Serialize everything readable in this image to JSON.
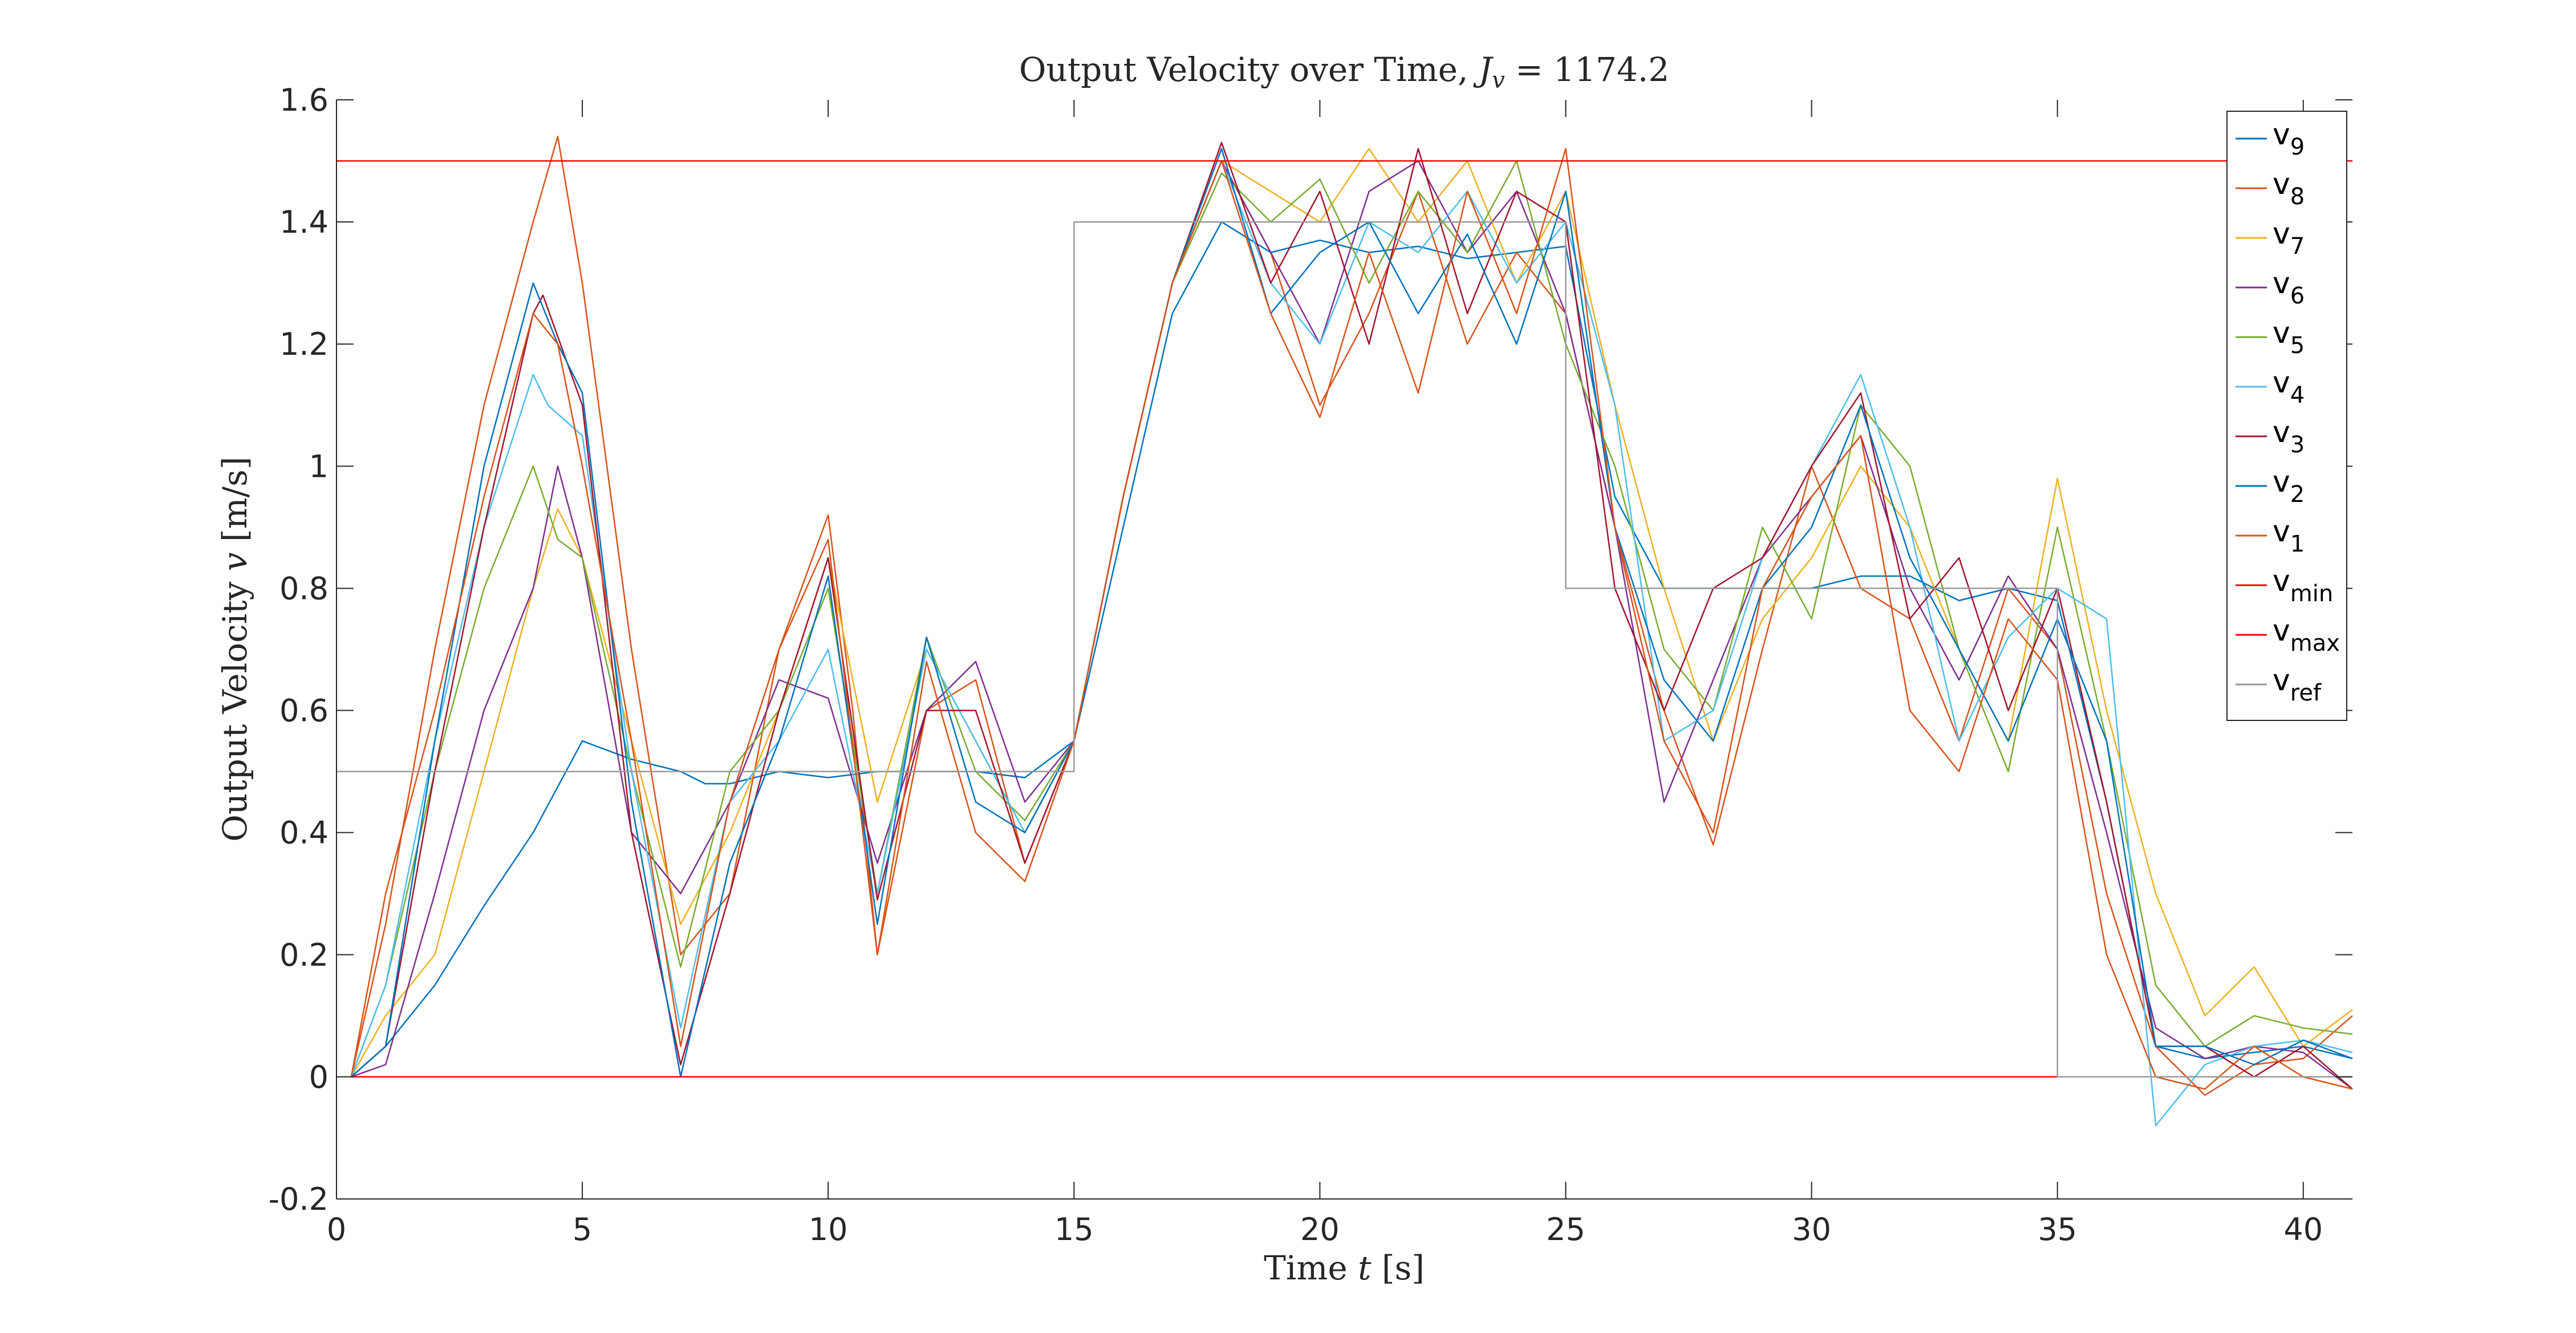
{
  "chart_data": {
    "type": "line",
    "title_prefix": "Output Velocity over Time, ",
    "title_var": "J",
    "title_sub": "v",
    "title_suffix": " = 1174.2",
    "xlabel_prefix": "Time ",
    "xlabel_var": "t",
    "xlabel_unit": " [s]",
    "ylabel_prefix": "Output Velocity ",
    "ylabel_var": "v",
    "ylabel_unit": " [m/s]",
    "xlim": [
      0,
      41
    ],
    "ylim": [
      -0.2,
      1.6
    ],
    "xticks": [
      0,
      5,
      10,
      15,
      20,
      25,
      30,
      35,
      40
    ],
    "xtick_labels": [
      "0",
      "5",
      "10",
      "15",
      "20",
      "25",
      "30",
      "35",
      "40"
    ],
    "yticks": [
      -0.2,
      0,
      0.2,
      0.4,
      0.6,
      0.8,
      1,
      1.2,
      1.4,
      1.6
    ],
    "ytick_labels": [
      "-0.2",
      "0",
      "0.2",
      "0.4",
      "0.6",
      "0.8",
      "1",
      "1.2",
      "1.4",
      "1.6"
    ],
    "grid": false,
    "legend_position": "top-right",
    "series": [
      {
        "name": "v",
        "sub": "9",
        "color": "#0072BD",
        "x": [
          0.3,
          1,
          2,
          3,
          4,
          5,
          6,
          7,
          7.5,
          8,
          9,
          10,
          11,
          12,
          13,
          14,
          15,
          16,
          17,
          18,
          19,
          20,
          21,
          22,
          23,
          24,
          25,
          26,
          27,
          28,
          29,
          30,
          31,
          32,
          33,
          34,
          35,
          36,
          37,
          38,
          39,
          40,
          41
        ],
        "y": [
          0,
          0.05,
          0.15,
          0.28,
          0.4,
          0.55,
          0.52,
          0.5,
          0.48,
          0.48,
          0.5,
          0.49,
          0.5,
          0.5,
          0.5,
          0.49,
          0.55,
          0.9,
          1.25,
          1.4,
          1.35,
          1.37,
          1.35,
          1.36,
          1.34,
          1.35,
          1.36,
          0.95,
          0.8,
          0.8,
          0.8,
          0.8,
          0.82,
          0.82,
          0.78,
          0.8,
          0.78,
          0.45,
          0.05,
          0.03,
          0.04,
          0.05,
          0.03
        ]
      },
      {
        "name": "v",
        "sub": "8",
        "color": "#D95319",
        "x": [
          0.3,
          1,
          2,
          3,
          4,
          4.5,
          5,
          6,
          7,
          8,
          9,
          10,
          10.5,
          11,
          12,
          13,
          14,
          15,
          16,
          17,
          18,
          19,
          20,
          21,
          22,
          23,
          24,
          25,
          26,
          27,
          28,
          29,
          30,
          31,
          32,
          33,
          34,
          35,
          36,
          37,
          38,
          39,
          40,
          41
        ],
        "y": [
          0,
          0.25,
          0.7,
          1.1,
          1.4,
          1.54,
          1.3,
          0.7,
          0.2,
          0.3,
          0.7,
          0.92,
          0.6,
          0.2,
          0.6,
          0.65,
          0.35,
          0.55,
          0.95,
          1.3,
          1.5,
          1.35,
          1.1,
          1.25,
          1.45,
          1.2,
          1.35,
          1.25,
          0.9,
          0.6,
          0.38,
          0.7,
          1.0,
          0.8,
          0.75,
          0.55,
          0.8,
          0.7,
          0.3,
          0.05,
          -0.03,
          0.02,
          0.03,
          0.1
        ]
      },
      {
        "name": "v",
        "sub": "7",
        "color": "#EDB120",
        "x": [
          0.3,
          1,
          2,
          3,
          4,
          4.5,
          5,
          6,
          7,
          8,
          9,
          10,
          11,
          12,
          13,
          14,
          15,
          16,
          17,
          18,
          19,
          20,
          21,
          22,
          23,
          24,
          25,
          26,
          27,
          28,
          29,
          30,
          31,
          32,
          33,
          34,
          35,
          36,
          37,
          38,
          39,
          40,
          41
        ],
        "y": [
          0,
          0.1,
          0.2,
          0.5,
          0.8,
          0.93,
          0.85,
          0.55,
          0.25,
          0.4,
          0.6,
          0.85,
          0.45,
          0.7,
          0.55,
          0.4,
          0.55,
          0.95,
          1.3,
          1.5,
          1.45,
          1.4,
          1.52,
          1.4,
          1.5,
          1.3,
          1.45,
          1.1,
          0.8,
          0.55,
          0.75,
          0.85,
          1.0,
          0.9,
          0.7,
          0.55,
          0.98,
          0.6,
          0.3,
          0.1,
          0.18,
          0.05,
          0.11
        ]
      },
      {
        "name": "v",
        "sub": "6",
        "color": "#7E2F8E",
        "x": [
          0.3,
          1,
          2,
          3,
          4,
          4.5,
          5,
          6,
          7,
          8,
          9,
          10,
          11,
          12,
          13,
          14,
          15,
          16,
          17,
          18,
          19,
          20,
          21,
          22,
          23,
          24,
          25,
          26,
          27,
          28,
          29,
          30,
          31,
          32,
          33,
          34,
          35,
          36,
          37,
          38,
          39,
          40,
          41
        ],
        "y": [
          0,
          0.02,
          0.3,
          0.6,
          0.8,
          1.0,
          0.85,
          0.4,
          0.3,
          0.45,
          0.65,
          0.62,
          0.35,
          0.6,
          0.68,
          0.45,
          0.55,
          0.95,
          1.3,
          1.5,
          1.35,
          1.2,
          1.45,
          1.5,
          1.35,
          1.45,
          1.25,
          0.9,
          0.45,
          0.65,
          0.85,
          0.95,
          1.05,
          0.8,
          0.65,
          0.82,
          0.7,
          0.4,
          0.08,
          0.03,
          0.05,
          0.04,
          -0.02
        ]
      },
      {
        "name": "v",
        "sub": "5",
        "color": "#77AC30",
        "x": [
          0.3,
          1,
          2,
          3,
          4,
          4.5,
          5,
          6,
          7,
          8,
          9,
          10,
          11,
          12,
          13,
          14,
          15,
          16,
          17,
          18,
          19,
          20,
          21,
          22,
          23,
          24,
          25,
          26,
          27,
          28,
          29,
          30,
          31,
          32,
          33,
          34,
          35,
          36,
          37,
          38,
          39,
          40,
          41
        ],
        "y": [
          0,
          0.15,
          0.5,
          0.8,
          1.0,
          0.88,
          0.85,
          0.5,
          0.18,
          0.5,
          0.6,
          0.8,
          0.3,
          0.72,
          0.5,
          0.42,
          0.55,
          0.95,
          1.3,
          1.48,
          1.4,
          1.47,
          1.3,
          1.45,
          1.35,
          1.5,
          1.2,
          1.0,
          0.7,
          0.6,
          0.9,
          0.75,
          1.1,
          1.0,
          0.7,
          0.5,
          0.9,
          0.55,
          0.15,
          0.05,
          0.1,
          0.08,
          0.07
        ]
      },
      {
        "name": "v",
        "sub": "4",
        "color": "#4DBEEE",
        "x": [
          0.3,
          1,
          2,
          3,
          4,
          4.3,
          5,
          6,
          7,
          8,
          9,
          10,
          11,
          12,
          13,
          14,
          15,
          16,
          17,
          18,
          19,
          20,
          21,
          22,
          23,
          24,
          25,
          26,
          27,
          28,
          29,
          30,
          31,
          32,
          33,
          34,
          35,
          36,
          37,
          38,
          39,
          40,
          41
        ],
        "y": [
          0,
          0.15,
          0.55,
          0.9,
          1.15,
          1.1,
          1.05,
          0.5,
          0.08,
          0.45,
          0.55,
          0.7,
          0.3,
          0.7,
          0.55,
          0.4,
          0.55,
          0.95,
          1.3,
          1.5,
          1.3,
          1.2,
          1.4,
          1.35,
          1.45,
          1.3,
          1.4,
          1.1,
          0.55,
          0.6,
          0.85,
          1.0,
          1.15,
          0.9,
          0.55,
          0.72,
          0.8,
          0.75,
          -0.08,
          0.02,
          0.05,
          0.06,
          0.04
        ]
      },
      {
        "name": "v",
        "sub": "3",
        "color": "#A2142F",
        "x": [
          0.3,
          1,
          2,
          3,
          4,
          4.2,
          5,
          6,
          7,
          8,
          9,
          10,
          11,
          12,
          13,
          14,
          15,
          16,
          17,
          18,
          19,
          20,
          21,
          22,
          23,
          24,
          25,
          26,
          27,
          28,
          29,
          30,
          31,
          32,
          33,
          34,
          35,
          36,
          37,
          38,
          39,
          40,
          41
        ],
        "y": [
          0,
          0.05,
          0.5,
          0.9,
          1.25,
          1.28,
          1.1,
          0.4,
          0.02,
          0.3,
          0.6,
          0.85,
          0.29,
          0.6,
          0.6,
          0.35,
          0.55,
          0.95,
          1.3,
          1.53,
          1.3,
          1.45,
          1.2,
          1.52,
          1.25,
          1.45,
          1.4,
          0.8,
          0.6,
          0.8,
          0.85,
          1.0,
          1.12,
          0.75,
          0.85,
          0.6,
          0.8,
          0.45,
          0.05,
          0.05,
          0.0,
          0.05,
          -0.02
        ]
      },
      {
        "name": "v",
        "sub": "2",
        "color": "#0072BD",
        "x": [
          0.3,
          1,
          2,
          3,
          4,
          4.5,
          5,
          6,
          7,
          8,
          9,
          10,
          11,
          12,
          13,
          14,
          15,
          16,
          17,
          18,
          19,
          20,
          21,
          22,
          23,
          24,
          25,
          26,
          27,
          28,
          29,
          30,
          31,
          32,
          33,
          34,
          35,
          36,
          37,
          38,
          39,
          40,
          41
        ],
        "y": [
          0,
          0.05,
          0.55,
          1.0,
          1.3,
          1.2,
          1.12,
          0.45,
          0.0,
          0.35,
          0.55,
          0.82,
          0.25,
          0.72,
          0.45,
          0.4,
          0.55,
          0.95,
          1.3,
          1.52,
          1.25,
          1.35,
          1.4,
          1.25,
          1.38,
          1.2,
          1.45,
          0.9,
          0.65,
          0.55,
          0.8,
          0.9,
          1.1,
          0.85,
          0.7,
          0.55,
          0.75,
          0.55,
          0.05,
          0.05,
          0.02,
          0.06,
          0.03
        ]
      },
      {
        "name": "v",
        "sub": "1",
        "color": "#D95319",
        "x": [
          0.3,
          1,
          2,
          3,
          4,
          4.5,
          5,
          6,
          7,
          8,
          9,
          10,
          11,
          12,
          13,
          14,
          15,
          16,
          17,
          18,
          19,
          20,
          21,
          22,
          23,
          24,
          25,
          26,
          27,
          28,
          29,
          30,
          31,
          32,
          33,
          34,
          35,
          36,
          37,
          38,
          39,
          40,
          41
        ],
        "y": [
          0,
          0.3,
          0.6,
          0.95,
          1.25,
          1.2,
          1.0,
          0.55,
          0.05,
          0.45,
          0.7,
          0.88,
          0.2,
          0.68,
          0.4,
          0.32,
          0.55,
          0.95,
          1.3,
          1.5,
          1.25,
          1.08,
          1.35,
          1.12,
          1.45,
          1.25,
          1.52,
          0.9,
          0.55,
          0.4,
          0.8,
          0.95,
          1.05,
          0.6,
          0.5,
          0.75,
          0.65,
          0.2,
          0.0,
          -0.02,
          0.05,
          0.0,
          -0.02
        ]
      },
      {
        "name": "v",
        "sub": "min",
        "color": "#FF0000",
        "x": [
          0.3,
          35
        ],
        "y": [
          0,
          0
        ]
      },
      {
        "name": "v",
        "sub": "max",
        "color": "#FF0000",
        "x": [
          0,
          41
        ],
        "y": [
          1.5,
          1.5
        ]
      },
      {
        "name": "v",
        "sub": "ref",
        "color": "#999999",
        "x": [
          0,
          15,
          15,
          25,
          25,
          35,
          35,
          41
        ],
        "y": [
          0.5,
          0.5,
          1.4,
          1.4,
          0.8,
          0.8,
          0,
          0
        ]
      }
    ]
  }
}
